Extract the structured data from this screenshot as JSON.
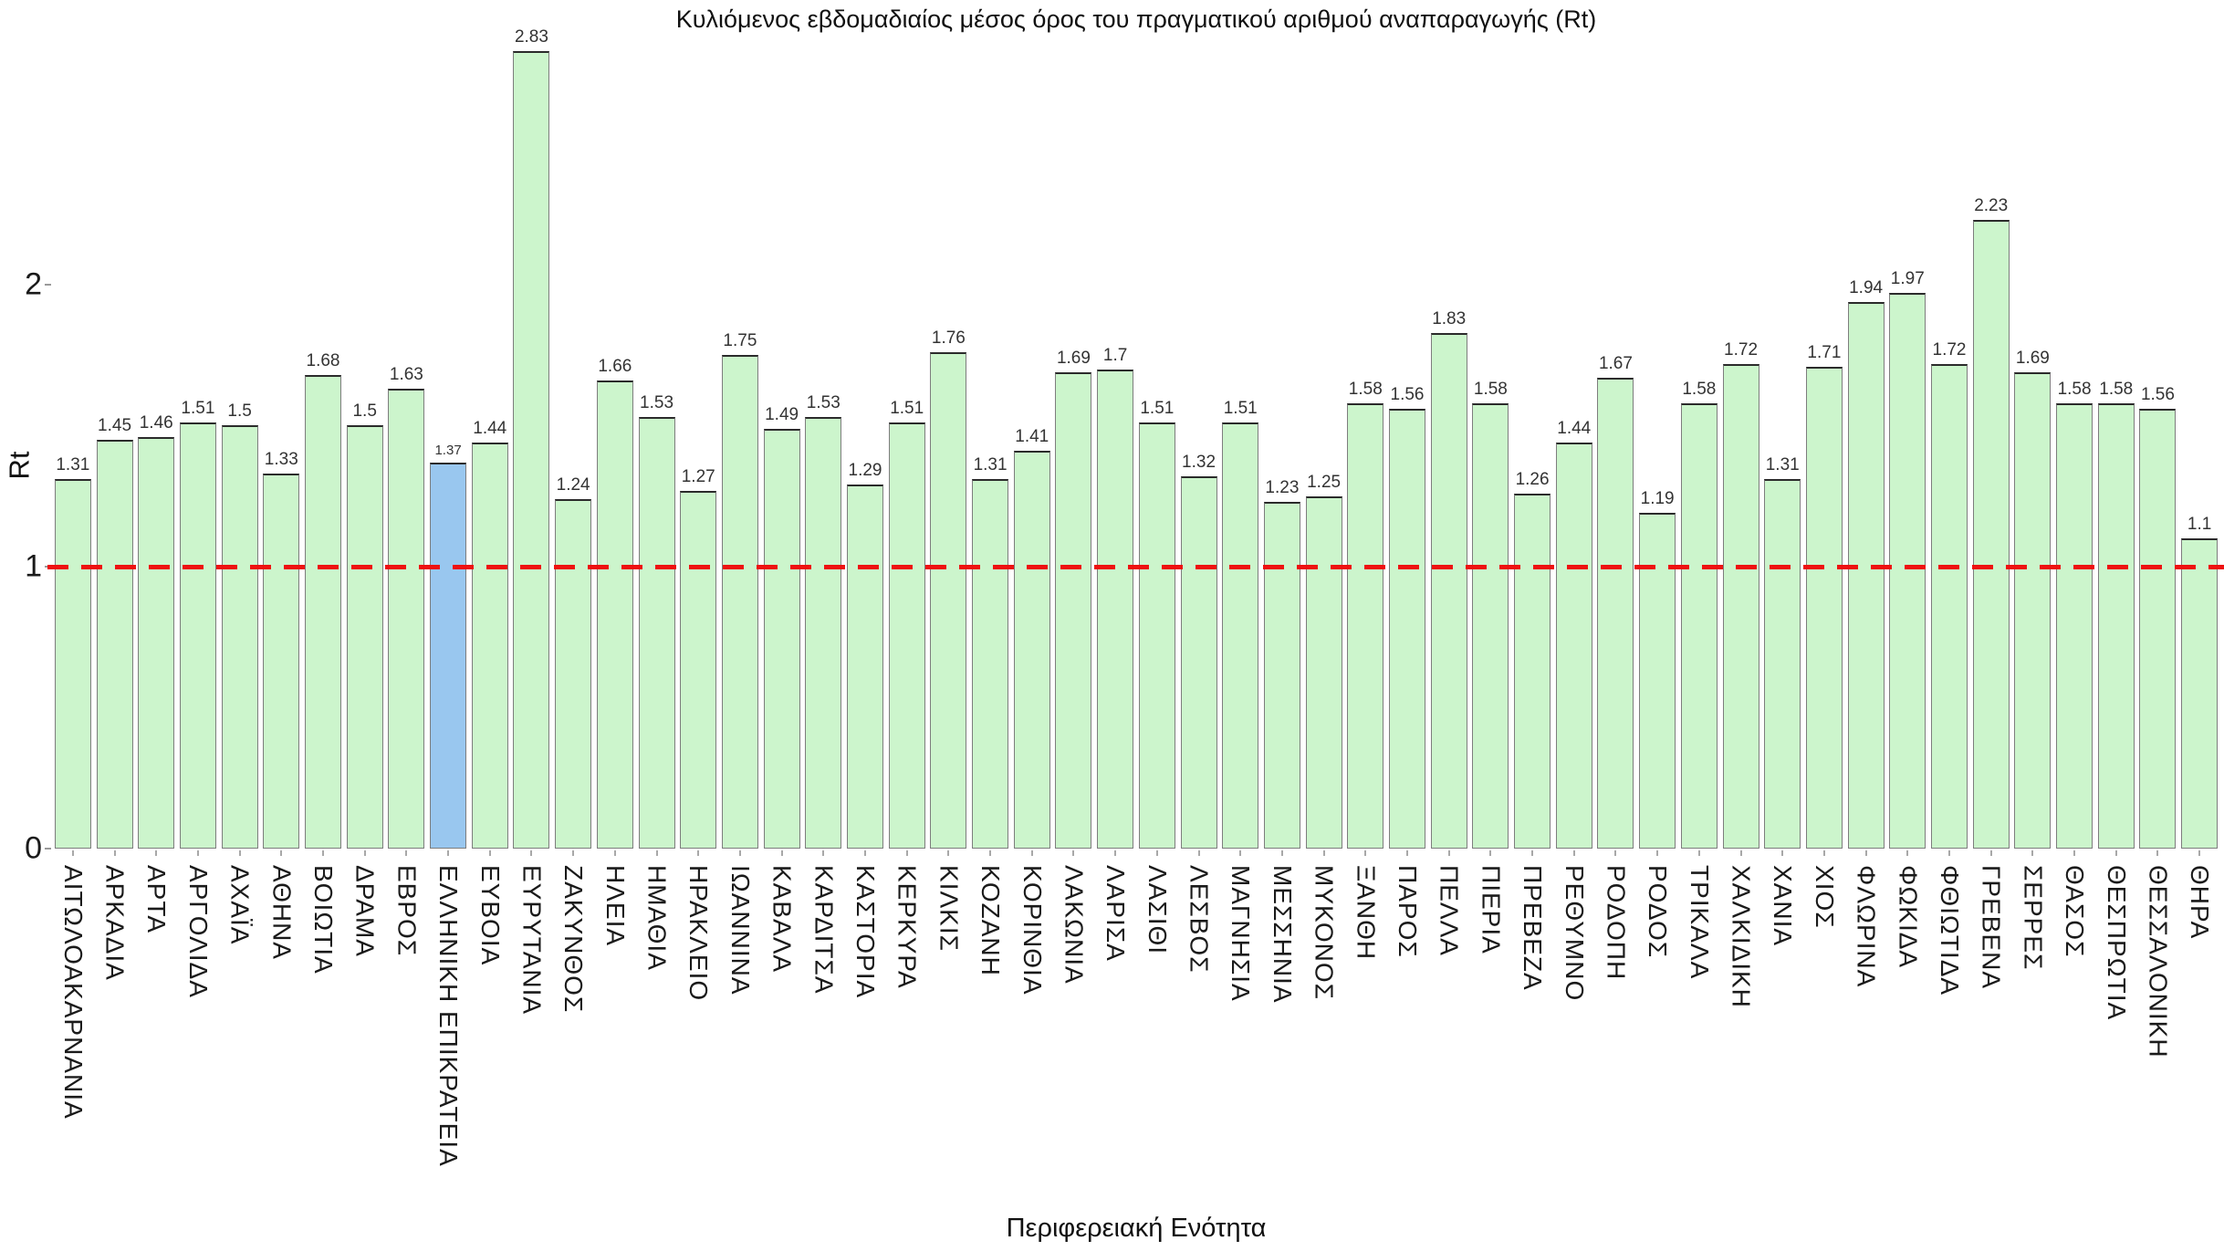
{
  "chart_data": {
    "type": "bar",
    "title": "Κυλιόμενος εβδομαδιαίος μέσος όρος του πραγματικού αριθμού αναπαραγωγής (Rt)",
    "xlabel": "Περιφερειακή Ενότητα",
    "ylabel": "Rt",
    "ylim": [
      0,
      2.9
    ],
    "yticks": [
      0,
      1,
      2
    ],
    "grid": false,
    "legend": "none",
    "bar_color": "#ccf5cc",
    "highlight_color": "#99c7ef",
    "highlight_category": "ΕΛΛΗΝΙΚΗ ΕΠΙΚΡΑΤΕΙΑ",
    "reference_line": {
      "y": 1,
      "color": "#ee1111",
      "style": "dashed"
    },
    "categories": [
      "ΑΙΤΩΛΟΑΚΑΡΝΑΝΙΑ",
      "ΑΡΚΑΔΙΑ",
      "ΑΡΤΑ",
      "ΑΡΓΟΛΙΔΑ",
      "ΑΧΑΪΑ",
      "ΑΘΗΝΑ",
      "ΒΟΙΩΤΙΑ",
      "ΔΡΑΜΑ",
      "ΕΒΡΟΣ",
      "ΕΛΛΗΝΙΚΗ ΕΠΙΚΡΑΤΕΙΑ",
      "ΕΥΒΟΙΑ",
      "ΕΥΡΥΤΑΝΙΑ",
      "ΖΑΚΥΝΘΟΣ",
      "ΗΛΕΙΑ",
      "ΗΜΑΘΙΑ",
      "ΗΡΑΚΛΕΙΟ",
      "ΙΩΑΝΝΙΝΑ",
      "ΚΑΒΑΛΑ",
      "ΚΑΡΔΙΤΣΑ",
      "ΚΑΣΤΟΡΙΑ",
      "ΚΕΡΚΥΡΑ",
      "ΚΙΛΚΙΣ",
      "ΚΟΖΑΝΗ",
      "ΚΟΡΙΝΘΙΑ",
      "ΛΑΚΩΝΙΑ",
      "ΛΑΡΙΣΑ",
      "ΛΑΣΙΘΙ",
      "ΛΕΣΒΟΣ",
      "ΜΑΓΝΗΣΙΑ",
      "ΜΕΣΣΗΝΙΑ",
      "ΜΥΚΟΝΟΣ",
      "ΞΑΝΘΗ",
      "ΠΑΡΟΣ",
      "ΠΕΛΛΑ",
      "ΠΙΕΡΙΑ",
      "ΠΡΕΒΕΖΑ",
      "ΡΕΘΥΜΝΟ",
      "ΡΟΔΟΠΗ",
      "ΡΟΔΟΣ",
      "ΤΡΙΚΑΛΑ",
      "ΧΑΛΚΙΔΙΚΗ",
      "ΧΑΝΙΑ",
      "ΧΙΟΣ",
      "ΦΛΩΡΙΝΑ",
      "ΦΩΚΙΔΑ",
      "ΦΘΙΩΤΙΔΑ",
      "ΓΡΕΒΕΝΑ",
      "ΣΕΡΡΕΣ",
      "ΘΑΣΟΣ",
      "ΘΕΣΠΡΩΤΙΑ",
      "ΘΕΣΣΑΛΟΝΙΚΗ",
      "ΘΗΡΑ"
    ],
    "values": [
      1.31,
      1.45,
      1.46,
      1.51,
      1.5,
      1.33,
      1.68,
      1.5,
      1.63,
      1.37,
      1.44,
      2.83,
      1.24,
      1.66,
      1.53,
      1.27,
      1.75,
      1.49,
      1.53,
      1.29,
      1.51,
      1.76,
      1.31,
      1.41,
      1.69,
      1.7,
      1.51,
      1.32,
      1.51,
      1.23,
      1.25,
      1.58,
      1.56,
      1.83,
      1.58,
      1.26,
      1.44,
      1.67,
      1.19,
      1.58,
      1.72,
      1.31,
      1.71,
      1.94,
      1.97,
      1.72,
      2.23,
      1.69,
      1.58,
      1.58,
      1.56,
      1.1
    ]
  }
}
